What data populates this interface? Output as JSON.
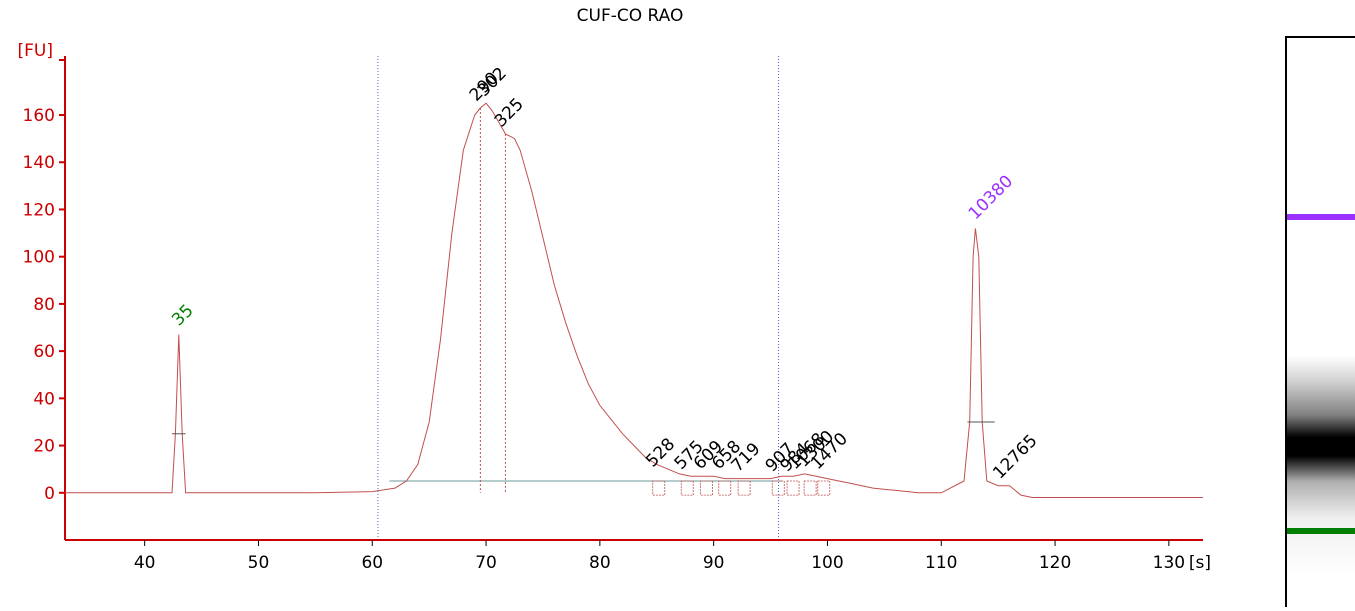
{
  "chart_data": {
    "type": "line",
    "title": "CUF-CO RAO",
    "ylabel": "[FU]",
    "xlabel": "[s]",
    "xlim": [
      33,
      133
    ],
    "ylim": [
      -20,
      185
    ],
    "x_ticks": [
      40,
      50,
      60,
      70,
      80,
      90,
      100,
      110,
      120,
      130
    ],
    "y_ticks": [
      0,
      20,
      40,
      60,
      80,
      100,
      120,
      140,
      160
    ],
    "grid": false,
    "legend": "none",
    "colors": {
      "trace": "#c0504d",
      "axis": "#cc0000",
      "lower_marker": "#008000",
      "upper_marker": "#9b30ff",
      "region_line": "#5a5ac8",
      "baseline": "#6a9a9a"
    },
    "region_bounds_s": [
      60.5,
      95.7
    ],
    "markers": [
      {
        "label": "35",
        "x": 43.0,
        "y": 67,
        "color": "#008000"
      },
      {
        "label": "10380",
        "x": 113.0,
        "y": 112,
        "color": "#9b30ff"
      }
    ],
    "peak_labels": [
      {
        "label": "290",
        "x": 69.5,
        "y": 163
      },
      {
        "label": "302",
        "x": 70.2,
        "y": 165
      },
      {
        "label": "325",
        "x": 71.7,
        "y": 152
      },
      {
        "label": "528",
        "x": 85.0,
        "y": 8
      },
      {
        "label": "575",
        "x": 87.5,
        "y": 7
      },
      {
        "label": "609",
        "x": 89.2,
        "y": 7
      },
      {
        "label": "658",
        "x": 90.8,
        "y": 7
      },
      {
        "label": "719",
        "x": 92.5,
        "y": 6
      },
      {
        "label": "907",
        "x": 95.5,
        "y": 6
      },
      {
        "label": "984",
        "x": 96.8,
        "y": 6
      },
      {
        "label": "1068",
        "x": 97.5,
        "y": 7
      },
      {
        "label": "1300",
        "x": 98.3,
        "y": 8
      },
      {
        "label": "1470",
        "x": 99.5,
        "y": 7
      },
      {
        "label": "12765",
        "x": 115.5,
        "y": 3
      }
    ],
    "series": [
      {
        "x": [
          33,
          42.4,
          42.7,
          43.0,
          43.3,
          43.6,
          46,
          55,
          60,
          62,
          63,
          64,
          65,
          66,
          67,
          68,
          69,
          69.5,
          70,
          70.5,
          71,
          71.7,
          72.5,
          73,
          74,
          75,
          76,
          77,
          78,
          79,
          80,
          81,
          82,
          83,
          84,
          85,
          86,
          87,
          88,
          89,
          90,
          91,
          92,
          93,
          94,
          95,
          96,
          97,
          98,
          99,
          100,
          101,
          102,
          104,
          106,
          108,
          110,
          112,
          112.5,
          112.8,
          113.0,
          113.3,
          113.6,
          114,
          115,
          116,
          117,
          118,
          120,
          125,
          130,
          133
        ],
        "y": [
          0,
          0,
          25,
          67,
          25,
          0,
          0,
          0,
          0.5,
          2,
          5,
          12,
          30,
          65,
          110,
          145,
          160,
          163,
          165,
          162,
          158,
          152,
          150,
          145,
          128,
          108,
          88,
          72,
          58,
          46,
          37,
          31,
          25,
          20,
          15,
          12,
          10,
          8,
          7,
          7,
          7,
          6,
          6,
          6,
          6,
          6,
          7,
          7,
          8,
          7,
          6,
          5,
          4,
          2,
          1,
          0,
          0,
          5,
          30,
          100,
          112,
          100,
          30,
          5,
          3,
          3,
          -1,
          -2,
          -2,
          -2,
          -2,
          -2
        ]
      }
    ]
  }
}
